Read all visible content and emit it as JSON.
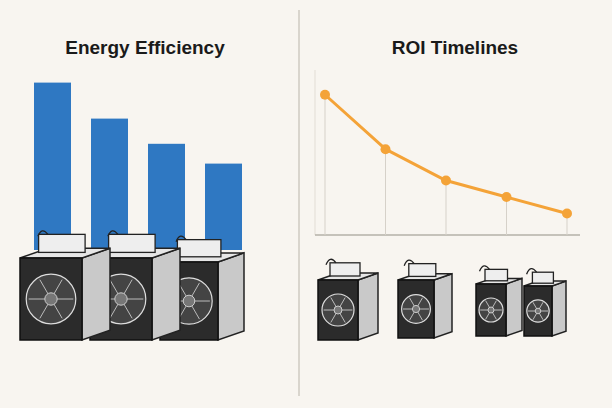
{
  "chart_data": [
    {
      "type": "bar",
      "title": "Energy Efficiency",
      "categories": [
        null,
        null,
        null,
        null
      ],
      "values": [
        93,
        73,
        59,
        48
      ],
      "color": "#2f78c2",
      "ylim": [
        0,
        100
      ],
      "grid": false,
      "tick_labels": false
    },
    {
      "type": "line",
      "title": "ROI Timelines",
      "categories": [
        null,
        null,
        null,
        null,
        null
      ],
      "values": [
        85,
        52,
        33,
        23,
        13
      ],
      "color": "#f4a338",
      "marker": "circle",
      "ylim": [
        0,
        100
      ],
      "grid": true,
      "tick_labels": false
    }
  ]
}
